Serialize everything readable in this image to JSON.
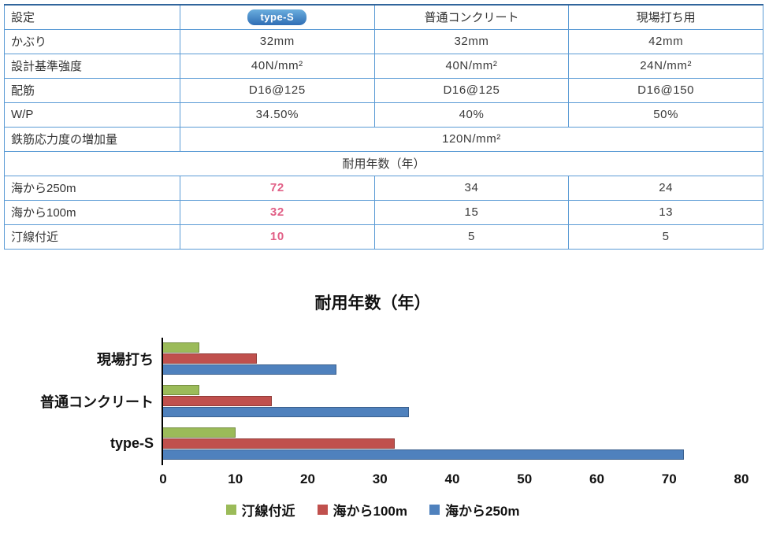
{
  "table": {
    "header": {
      "label": "設定",
      "type_s_badge": "type-S",
      "col2": "普通コンクリート",
      "col3": "現場打ち用"
    },
    "rows": [
      {
        "label": "かぶり",
        "values": [
          "32mm",
          "32mm",
          "42mm"
        ]
      },
      {
        "label": "設計基準強度",
        "values": [
          "40N/mm²",
          "40N/mm²",
          "24N/mm²"
        ]
      },
      {
        "label": "配筋",
        "values": [
          "D16@125",
          "D16@125",
          "D16@150"
        ]
      },
      {
        "label": "W/P",
        "values": [
          "34.50%",
          "40%",
          "50%"
        ]
      }
    ],
    "merged_row": {
      "label": "鉄筋応力度の増加量",
      "value": "120N/mm²"
    },
    "section_header": "耐用年数（年）",
    "life_rows": [
      {
        "label": "海から250m",
        "highlight": "72",
        "values": [
          "34",
          "24"
        ]
      },
      {
        "label": "海から100m",
        "highlight": "32",
        "values": [
          "15",
          "13"
        ]
      },
      {
        "label": "汀線付近",
        "highlight": "10",
        "values": [
          "5",
          "5"
        ]
      }
    ],
    "colors": {
      "border": "#5b9bd5",
      "label_bg": "#c9e5f5",
      "type_s_header_bg": "#1f3864",
      "normal_header_bg": "#d9d9d9",
      "site_header_bg": "#e7d7e9",
      "highlight_text": "#e15f86"
    }
  },
  "chart_data": {
    "type": "bar",
    "orientation": "horizontal",
    "title": "耐用年数（年）",
    "categories": [
      "現場打ち",
      "普通コンクリート",
      "type-S"
    ],
    "series": [
      {
        "name": "汀線付近",
        "color": "#9bbb59",
        "values": [
          5,
          5,
          10
        ]
      },
      {
        "name": "海から100m",
        "color": "#c0504d",
        "values": [
          13,
          15,
          32
        ]
      },
      {
        "name": "海から250m",
        "color": "#4f81bd",
        "values": [
          24,
          34,
          72
        ]
      }
    ],
    "xlim": [
      0,
      80
    ],
    "xticks": [
      0,
      10,
      20,
      30,
      40,
      50,
      60,
      70,
      80
    ],
    "grid": false,
    "legend_position": "bottom"
  }
}
